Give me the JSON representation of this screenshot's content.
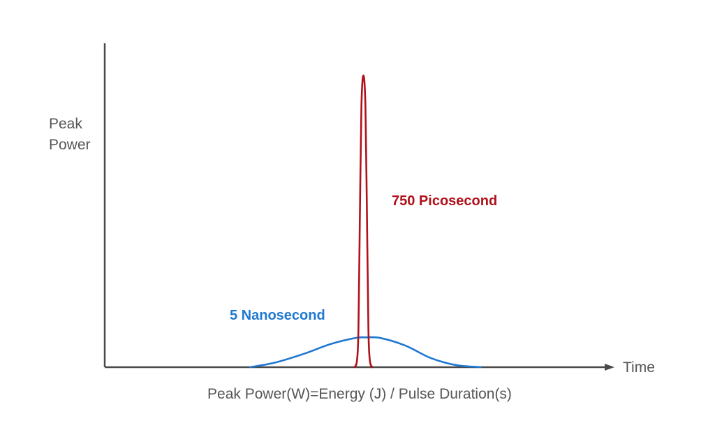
{
  "chart_data": {
    "type": "line",
    "title": "",
    "ylabel_lines": [
      "Peak",
      "Power"
    ],
    "xlabel": "Time",
    "caption": "Peak Power(W)=Energy (J) / Pulse Duration(s)",
    "grid": false,
    "legend": "none",
    "axis_color": "#4a4a4a",
    "text_color": "#555555",
    "xlim": [
      0,
      100
    ],
    "ylim": [
      0,
      100
    ],
    "series": [
      {
        "name": "5 Nanosecond",
        "color": "#1f78d1",
        "label_color": "#1f78d1",
        "points": [
          [
            29,
            0
          ],
          [
            34,
            1.5
          ],
          [
            40,
            4.5
          ],
          [
            45,
            7.5
          ],
          [
            50,
            9.5
          ],
          [
            52,
            9.7
          ],
          [
            55,
            9.5
          ],
          [
            60,
            7
          ],
          [
            65,
            3
          ],
          [
            70,
            0.7
          ],
          [
            75,
            0
          ]
        ]
      },
      {
        "name": "750 Picosecond",
        "color": "#b0121b",
        "label_color": "#b0121b",
        "points": [
          [
            49.8,
            0
          ],
          [
            50.3,
            2
          ],
          [
            50.6,
            12
          ],
          [
            50.9,
            50
          ],
          [
            51.2,
            85
          ],
          [
            51.6,
            95
          ],
          [
            52,
            85
          ],
          [
            52.3,
            50
          ],
          [
            52.6,
            12
          ],
          [
            52.9,
            2
          ],
          [
            53.4,
            0
          ]
        ]
      }
    ]
  }
}
